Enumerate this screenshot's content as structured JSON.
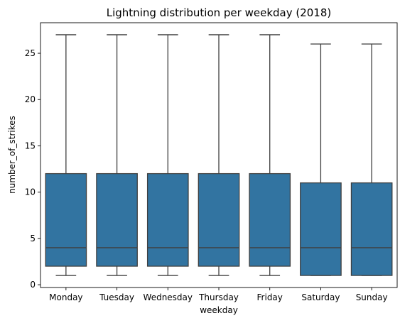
{
  "chart_data": {
    "type": "box",
    "title": "Lightning distribution per weekday (2018)",
    "xlabel": "weekday",
    "ylabel": "number_of_strikes",
    "categories": [
      "Monday",
      "Tuesday",
      "Wednesday",
      "Thursday",
      "Friday",
      "Saturday",
      "Sunday"
    ],
    "boxes": [
      {
        "category": "Monday",
        "whisker_low": 1,
        "q1": 2,
        "median": 4,
        "q3": 12,
        "whisker_high": 27
      },
      {
        "category": "Tuesday",
        "whisker_low": 1,
        "q1": 2,
        "median": 4,
        "q3": 12,
        "whisker_high": 27
      },
      {
        "category": "Wednesday",
        "whisker_low": 1,
        "q1": 2,
        "median": 4,
        "q3": 12,
        "whisker_high": 27
      },
      {
        "category": "Thursday",
        "whisker_low": 1,
        "q1": 2,
        "median": 4,
        "q3": 12,
        "whisker_high": 27
      },
      {
        "category": "Friday",
        "whisker_low": 1,
        "q1": 2,
        "median": 4,
        "q3": 12,
        "whisker_high": 27
      },
      {
        "category": "Saturday",
        "whisker_low": 1,
        "q1": 1,
        "median": 4,
        "q3": 11,
        "whisker_high": 26
      },
      {
        "category": "Sunday",
        "whisker_low": 1,
        "q1": 1,
        "median": 4,
        "q3": 11,
        "whisker_high": 26
      }
    ],
    "yticks": [
      0,
      5,
      10,
      15,
      20,
      25
    ],
    "ylim": [
      -0.3,
      28.3
    ],
    "grid": false,
    "legend": "none",
    "colors": {
      "box_fill": "#3274a1",
      "line": "#3f3f3f"
    }
  }
}
